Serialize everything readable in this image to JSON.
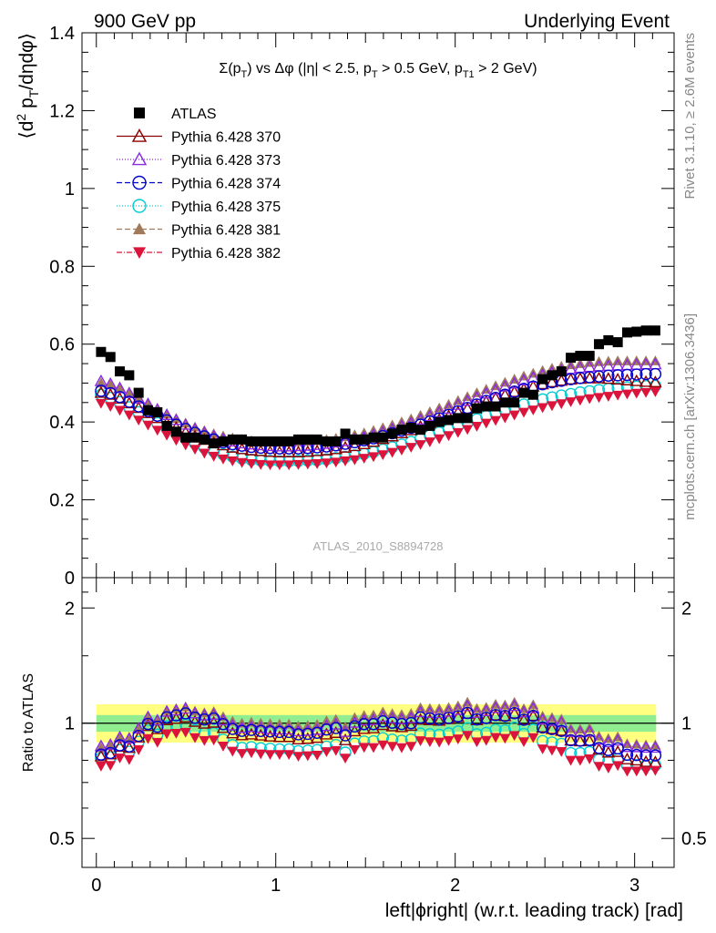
{
  "header": {
    "left": "900 GeV pp",
    "right": "Underlying Event"
  },
  "side_labels": {
    "rivet": "Rivet 3.1.10, ≥ 2.6M events",
    "mcplots": "mcplots.cern.ch [arXiv:1306.3436]"
  },
  "watermark": "ATLAS_2010_S8894728",
  "chart_data": [
    {
      "type": "scatter",
      "title": "Σ(p_T) vs Δφ (|η| < 2.5, p_T > 0.5 GeV, p_T1 > 2 GeV)",
      "title_parts": {
        "a": "Σ(p",
        "a_sub": "T",
        "b": ") vs Δφ (|η| < 2.5, p",
        "b_sub": "T",
        "c": " > 0.5 GeV, p",
        "c_sub": "T1",
        "d": " > 2 GeV)"
      },
      "ylabel": "⟨d² p_T/dηdφ⟩",
      "ylabel_parts": {
        "a": "⟨d",
        "sup": "2",
        "b": " p",
        "sub": "T",
        "c": "/dηdφ⟩"
      },
      "xlabel": "left|ϕright| (w.r.t. leading track) [rad]",
      "xlim": [
        -0.08,
        3.22
      ],
      "ylim": [
        0,
        1.4
      ],
      "yticks": [
        "0",
        "0.2",
        "0.4",
        "0.6",
        "0.8",
        "1",
        "1.2",
        "1.4"
      ],
      "xticks": [
        "0",
        "1",
        "2",
        "3"
      ],
      "legend_position": "top-left",
      "series": [
        {
          "name": "ATLAS",
          "color": "#000000",
          "marker": "square-filled",
          "values": [
            0.58,
            0.567,
            0.53,
            0.52,
            0.475,
            0.43,
            0.425,
            0.39,
            0.375,
            0.36,
            0.36,
            0.355,
            0.345,
            0.35,
            0.355,
            0.355,
            0.35,
            0.35,
            0.35,
            0.35,
            0.35,
            0.355,
            0.355,
            0.355,
            0.35,
            0.35,
            0.37,
            0.355,
            0.355,
            0.36,
            0.36,
            0.37,
            0.38,
            0.385,
            0.38,
            0.39,
            0.4,
            0.405,
            0.41,
            0.41,
            0.435,
            0.44,
            0.44,
            0.45,
            0.45,
            0.475,
            0.47,
            0.51,
            0.52,
            0.53,
            0.565,
            0.57,
            0.57,
            0.6,
            0.61,
            0.605,
            0.63,
            0.632,
            0.635,
            0.635
          ]
        },
        {
          "name": "Pythia 6.428 370",
          "color": "#8b0000",
          "marker": "triangle-open",
          "dash": "",
          "values": [
            0.475,
            0.47,
            0.46,
            0.448,
            0.436,
            0.423,
            0.41,
            0.397,
            0.385,
            0.373,
            0.363,
            0.354,
            0.346,
            0.34,
            0.334,
            0.33,
            0.327,
            0.325,
            0.323,
            0.322,
            0.322,
            0.322,
            0.323,
            0.325,
            0.327,
            0.33,
            0.334,
            0.338,
            0.343,
            0.349,
            0.356,
            0.363,
            0.371,
            0.379,
            0.388,
            0.397,
            0.406,
            0.415,
            0.425,
            0.434,
            0.443,
            0.452,
            0.461,
            0.469,
            0.477,
            0.484,
            0.491,
            0.497,
            0.502,
            0.506,
            0.509,
            0.511,
            0.512,
            0.512,
            0.511,
            0.509,
            0.507,
            0.505,
            0.503,
            0.502
          ]
        },
        {
          "name": "Pythia 6.428 373",
          "color": "#8a2be2",
          "marker": "triangle-open",
          "dash": "1,2",
          "values": [
            0.505,
            0.498,
            0.487,
            0.474,
            0.46,
            0.446,
            0.432,
            0.418,
            0.405,
            0.393,
            0.382,
            0.372,
            0.363,
            0.356,
            0.35,
            0.345,
            0.342,
            0.34,
            0.338,
            0.337,
            0.337,
            0.338,
            0.339,
            0.341,
            0.344,
            0.347,
            0.351,
            0.356,
            0.361,
            0.367,
            0.374,
            0.381,
            0.389,
            0.397,
            0.406,
            0.415,
            0.425,
            0.434,
            0.444,
            0.454,
            0.463,
            0.473,
            0.482,
            0.491,
            0.499,
            0.507,
            0.514,
            0.521,
            0.527,
            0.532,
            0.536,
            0.539,
            0.541,
            0.543,
            0.544,
            0.545,
            0.546,
            0.547,
            0.548,
            0.548
          ]
        },
        {
          "name": "Pythia 6.428 374",
          "color": "#0000cd",
          "marker": "circle-open",
          "dash": "6,3",
          "values": [
            0.48,
            0.474,
            0.464,
            0.452,
            0.44,
            0.428,
            0.416,
            0.404,
            0.393,
            0.382,
            0.372,
            0.363,
            0.355,
            0.348,
            0.343,
            0.339,
            0.336,
            0.334,
            0.333,
            0.332,
            0.332,
            0.332,
            0.333,
            0.335,
            0.337,
            0.34,
            0.344,
            0.348,
            0.353,
            0.358,
            0.364,
            0.371,
            0.378,
            0.385,
            0.393,
            0.401,
            0.409,
            0.418,
            0.427,
            0.436,
            0.445,
            0.454,
            0.462,
            0.47,
            0.478,
            0.485,
            0.491,
            0.497,
            0.502,
            0.506,
            0.51,
            0.513,
            0.515,
            0.517,
            0.519,
            0.52,
            0.521,
            0.522,
            0.523,
            0.523
          ]
        },
        {
          "name": "Pythia 6.428 375",
          "color": "#00ced1",
          "marker": "circle-open",
          "dash": "1,2",
          "values": [
            0.47,
            0.462,
            0.451,
            0.438,
            0.425,
            0.411,
            0.397,
            0.383,
            0.37,
            0.357,
            0.345,
            0.334,
            0.325,
            0.317,
            0.311,
            0.306,
            0.303,
            0.301,
            0.3,
            0.299,
            0.299,
            0.3,
            0.301,
            0.302,
            0.304,
            0.307,
            0.31,
            0.314,
            0.318,
            0.323,
            0.329,
            0.335,
            0.342,
            0.349,
            0.357,
            0.365,
            0.373,
            0.381,
            0.39,
            0.398,
            0.407,
            0.415,
            0.423,
            0.431,
            0.438,
            0.445,
            0.452,
            0.458,
            0.463,
            0.468,
            0.472,
            0.476,
            0.479,
            0.482,
            0.485,
            0.487,
            0.489,
            0.491,
            0.492,
            0.493
          ]
        },
        {
          "name": "Pythia 6.428 381",
          "color": "#a0785a",
          "marker": "triangle-filled",
          "dash": "6,3",
          "values": [
            0.5,
            0.495,
            0.485,
            0.473,
            0.46,
            0.447,
            0.434,
            0.421,
            0.409,
            0.397,
            0.387,
            0.378,
            0.37,
            0.364,
            0.359,
            0.355,
            0.352,
            0.35,
            0.349,
            0.348,
            0.348,
            0.349,
            0.35,
            0.352,
            0.355,
            0.358,
            0.362,
            0.367,
            0.372,
            0.378,
            0.385,
            0.392,
            0.4,
            0.408,
            0.417,
            0.426,
            0.436,
            0.445,
            0.455,
            0.465,
            0.475,
            0.484,
            0.493,
            0.502,
            0.51,
            0.518,
            0.525,
            0.532,
            0.538,
            0.543,
            0.547,
            0.55,
            0.553,
            0.555,
            0.556,
            0.557,
            0.557,
            0.557,
            0.557,
            0.557
          ]
        },
        {
          "name": "Pythia 6.428 382",
          "color": "#dc143c",
          "marker": "triangle-down-filled",
          "dash": "6,2,1,2",
          "values": [
            0.448,
            0.44,
            0.43,
            0.418,
            0.405,
            0.392,
            0.379,
            0.366,
            0.353,
            0.341,
            0.33,
            0.32,
            0.312,
            0.305,
            0.3,
            0.296,
            0.293,
            0.291,
            0.29,
            0.29,
            0.29,
            0.291,
            0.292,
            0.293,
            0.295,
            0.297,
            0.3,
            0.303,
            0.307,
            0.311,
            0.316,
            0.322,
            0.328,
            0.335,
            0.342,
            0.349,
            0.357,
            0.365,
            0.373,
            0.381,
            0.389,
            0.397,
            0.404,
            0.411,
            0.418,
            0.425,
            0.431,
            0.437,
            0.442,
            0.447,
            0.452,
            0.456,
            0.46,
            0.463,
            0.466,
            0.469,
            0.472,
            0.474,
            0.476,
            0.478
          ]
        }
      ]
    },
    {
      "type": "scatter",
      "title": "",
      "ylabel": "Ratio to ATLAS",
      "xlabel": "left|ϕright| (w.r.t. leading track) [rad]",
      "xlim": [
        -0.08,
        3.22
      ],
      "ylim": [
        0.42,
        2.4
      ],
      "yscale": "log",
      "yticks": [
        "0.5",
        "1",
        "2"
      ],
      "bands": [
        {
          "lo": 0.89,
          "hi": 1.12,
          "color": "#ffff80"
        },
        {
          "lo": 0.95,
          "hi": 1.05,
          "color": "#90ee90"
        }
      ],
      "reference": 1.0
    }
  ]
}
